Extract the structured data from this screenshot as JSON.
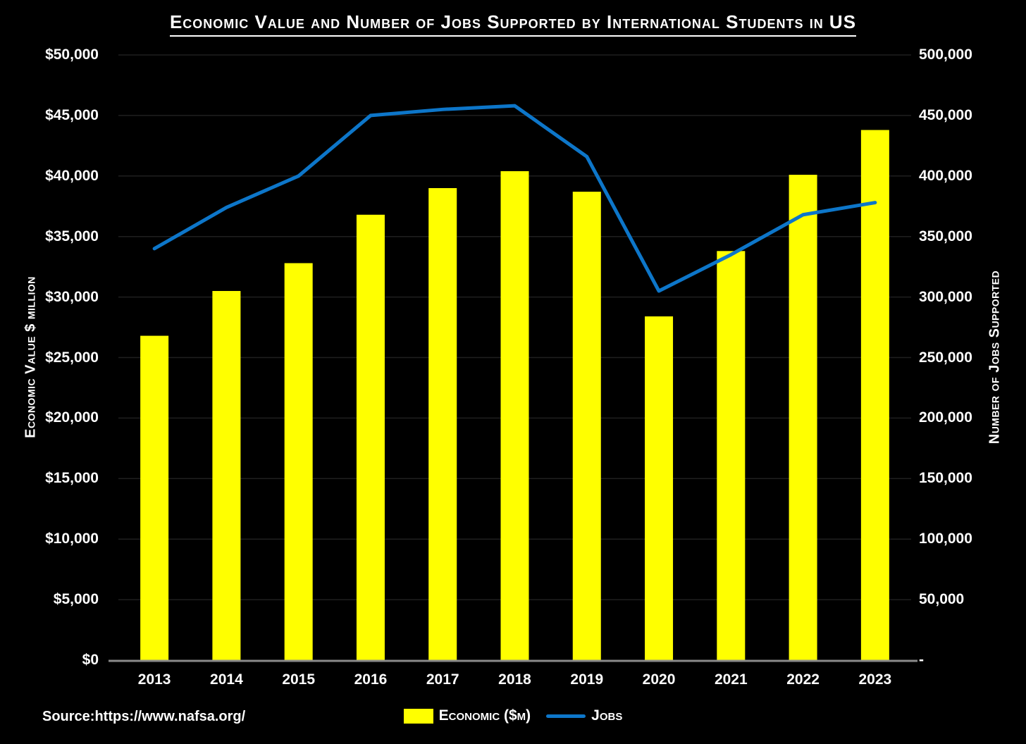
{
  "title": "Economic Value and Number of Jobs Supported by International Students in US",
  "source": "Source:https://www.nafsa.org/",
  "legend": {
    "economic_label": "Economic ($m)",
    "jobs_label": "Jobs"
  },
  "axes": {
    "left_title": "Economic Value $ million",
    "right_title": "Number of Jobs Supported",
    "left_ticks_bottom_to_top": [
      "$0",
      "$5,000",
      "$10,000",
      "$15,000",
      "$20,000",
      "$25,000",
      "$30,000",
      "$35,000",
      "$40,000",
      "$45,000",
      "$50,000"
    ],
    "right_ticks_bottom_to_top": [
      "-",
      "50,000",
      "100,000",
      "150,000",
      "200,000",
      "250,000",
      "300,000",
      "350,000",
      "400,000",
      "450,000",
      "500,000"
    ]
  },
  "colors": {
    "background": "#000000",
    "bar": "#ffff00",
    "line": "#0d76c9",
    "grid": "#1f1f1f",
    "axis_line": "#8a8a8a",
    "text": "#ffffff"
  },
  "chart_data": {
    "type": "bar+line combo",
    "categories": [
      "2013",
      "2014",
      "2015",
      "2016",
      "2017",
      "2018",
      "2019",
      "2020",
      "2021",
      "2022",
      "2023"
    ],
    "series": [
      {
        "name": "Economic ($m)",
        "type": "bar",
        "axis": "left",
        "color": "#ffff00",
        "values": [
          26800,
          30500,
          32800,
          36800,
          39000,
          40400,
          38700,
          28400,
          33800,
          40100,
          43800
        ]
      },
      {
        "name": "Jobs",
        "type": "line",
        "axis": "right",
        "color": "#0d76c9",
        "values": [
          340000,
          374000,
          400000,
          450000,
          455000,
          458000,
          416000,
          305000,
          335000,
          368000,
          378000
        ]
      }
    ],
    "left_axis": {
      "label": "Economic Value $ million",
      "range": [
        0,
        50000
      ],
      "tick_step": 5000
    },
    "right_axis": {
      "label": "Number of Jobs Supported",
      "range": [
        0,
        500000
      ],
      "tick_step": 50000
    },
    "grid": true,
    "legend_position": "bottom-center",
    "title": "Economic Value and Number of Jobs Supported by International Students in US"
  }
}
